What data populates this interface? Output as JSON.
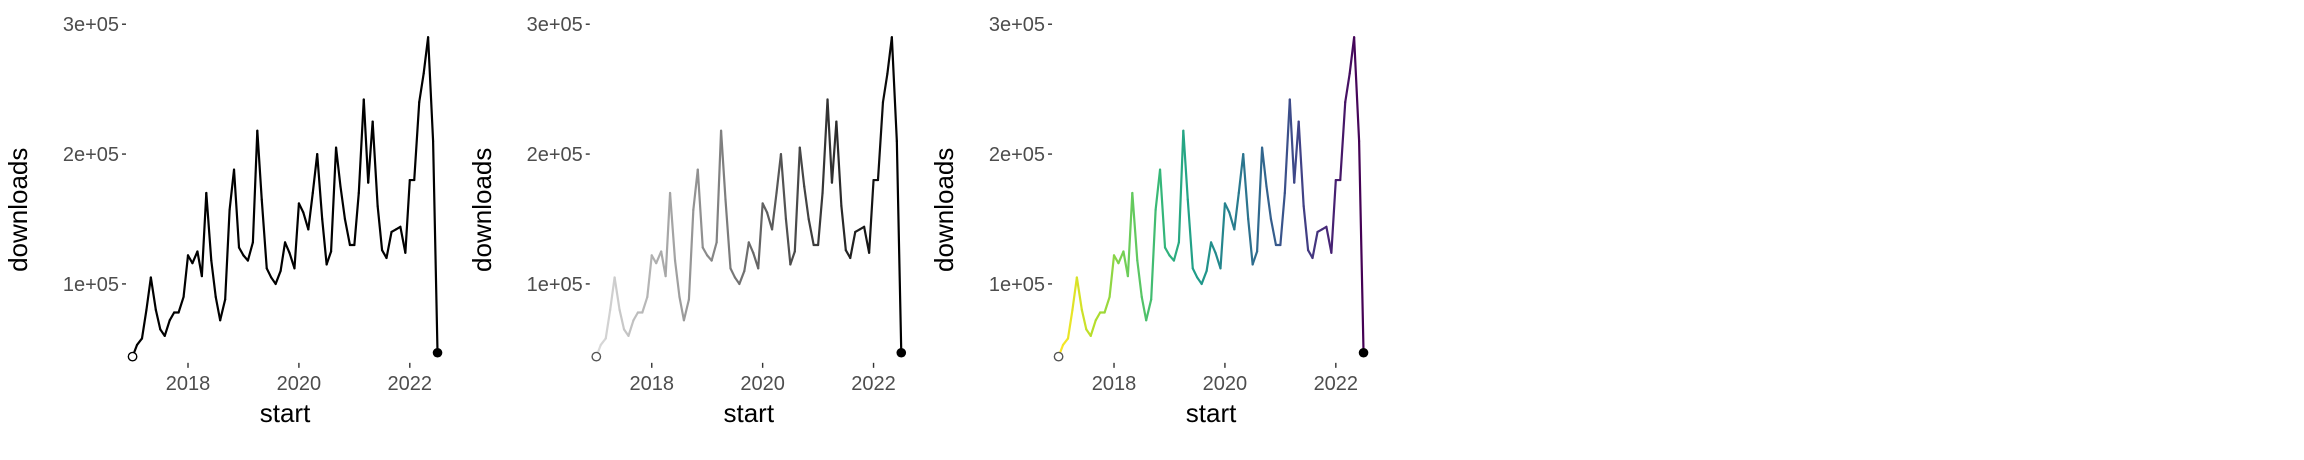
{
  "chart_data": [
    {
      "type": "line",
      "style": "black",
      "title": "",
      "xlabel": "start",
      "ylabel": "downloads",
      "xlim": [
        2016.9,
        2022.6
      ],
      "ylim": [
        40000,
        305000
      ],
      "xticks": [
        {
          "value": 2018,
          "label": "2018"
        },
        {
          "value": 2020,
          "label": "2020"
        },
        {
          "value": 2022,
          "label": "2022"
        }
      ],
      "yticks": [
        {
          "value": 100000,
          "label": "1e+05"
        },
        {
          "value": 200000,
          "label": "2e+05"
        },
        {
          "value": 300000,
          "label": "3e+05"
        }
      ],
      "grid": false,
      "line_color": "#000000",
      "start_marker": "open-circle",
      "end_marker": "filled-circle"
    },
    {
      "type": "line",
      "style": "gray-gradient",
      "title": "",
      "xlabel": "start",
      "ylabel": "downloads",
      "xlim": [
        2016.9,
        2022.6
      ],
      "ylim": [
        40000,
        305000
      ],
      "xticks": [
        {
          "value": 2018,
          "label": "2018"
        },
        {
          "value": 2020,
          "label": "2020"
        },
        {
          "value": 2022,
          "label": "2022"
        }
      ],
      "yticks": [
        {
          "value": 100000,
          "label": "1e+05"
        },
        {
          "value": 200000,
          "label": "2e+05"
        },
        {
          "value": 300000,
          "label": "3e+05"
        }
      ],
      "grid": false,
      "gradient_colors": [
        "#d9d9d9",
        "#000000"
      ],
      "start_marker": "open-circle",
      "end_marker": "filled-circle"
    },
    {
      "type": "line",
      "style": "viridis-gradient",
      "title": "",
      "xlabel": "start",
      "ylabel": "downloads",
      "xlim": [
        2016.9,
        2022.6
      ],
      "ylim": [
        40000,
        305000
      ],
      "xticks": [
        {
          "value": 2018,
          "label": "2018"
        },
        {
          "value": 2020,
          "label": "2020"
        },
        {
          "value": 2022,
          "label": "2022"
        }
      ],
      "yticks": [
        {
          "value": 100000,
          "label": "1e+05"
        },
        {
          "value": 200000,
          "label": "2e+05"
        },
        {
          "value": 300000,
          "label": "3e+05"
        }
      ],
      "grid": false,
      "gradient_colors": [
        "#fde725",
        "#b5de2b",
        "#6ece58",
        "#35b779",
        "#1f9e89",
        "#26828e",
        "#31688e",
        "#3e4989",
        "#482878",
        "#440154"
      ],
      "start_marker": "open-circle",
      "end_marker": "filled-circle"
    }
  ],
  "series": {
    "name": "",
    "x": [
      2017.0,
      2017.08,
      2017.17,
      2017.25,
      2017.33,
      2017.42,
      2017.5,
      2017.58,
      2017.67,
      2017.75,
      2017.83,
      2017.92,
      2018.0,
      2018.08,
      2018.17,
      2018.25,
      2018.33,
      2018.42,
      2018.5,
      2018.58,
      2018.67,
      2018.75,
      2018.83,
      2018.92,
      2019.0,
      2019.08,
      2019.17,
      2019.25,
      2019.33,
      2019.42,
      2019.5,
      2019.58,
      2019.67,
      2019.75,
      2019.83,
      2019.92,
      2020.0,
      2020.08,
      2020.17,
      2020.25,
      2020.33,
      2020.42,
      2020.5,
      2020.58,
      2020.67,
      2020.75,
      2020.83,
      2020.92,
      2021.0,
      2021.08,
      2021.17,
      2021.25,
      2021.33,
      2021.42,
      2021.5,
      2021.58,
      2021.67,
      2021.75,
      2021.83,
      2021.92,
      2022.0,
      2022.08,
      2022.17,
      2022.25,
      2022.33,
      2022.42,
      2022.5
    ],
    "y": [
      44000,
      53000,
      58000,
      80000,
      105000,
      80000,
      65000,
      60000,
      72000,
      78000,
      78000,
      90000,
      122000,
      116000,
      125000,
      106000,
      170000,
      118000,
      90000,
      72000,
      88000,
      157000,
      188000,
      128000,
      122000,
      118000,
      132000,
      218000,
      165000,
      112000,
      105000,
      100000,
      110000,
      132000,
      124000,
      112000,
      162000,
      155000,
      142000,
      170000,
      200000,
      150000,
      115000,
      125000,
      205000,
      175000,
      150000,
      130000,
      130000,
      170000,
      242000,
      178000,
      225000,
      160000,
      126000,
      120000,
      140000,
      142000,
      144000,
      124000,
      180000,
      180000,
      240000,
      262000,
      290000,
      210000,
      47000
    ]
  }
}
